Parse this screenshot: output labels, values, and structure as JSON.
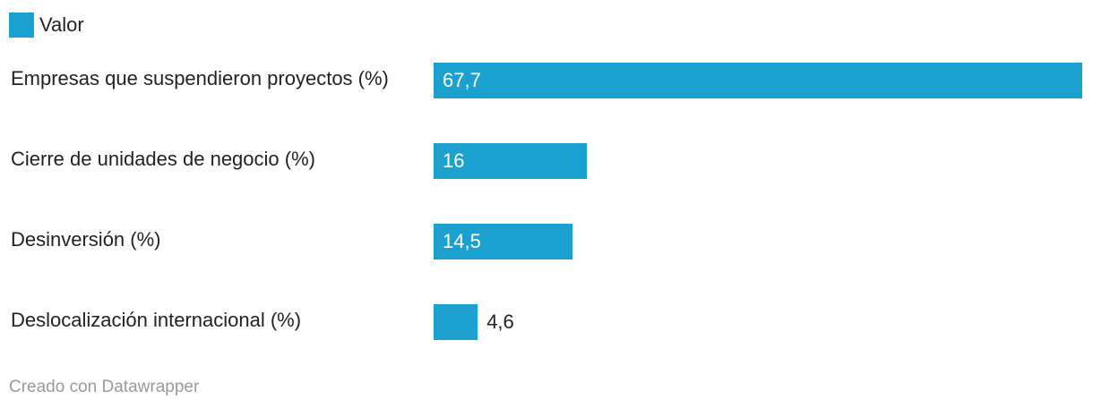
{
  "chart_data": {
    "type": "bar",
    "orientation": "horizontal",
    "legend": [
      "Valor"
    ],
    "categories": [
      "Empresas que suspendieron proyectos (%)",
      "Cierre de unidades de negocio (%)",
      "Desinversión (%)",
      "Deslocalización internacional (%)"
    ],
    "values": [
      67.7,
      16,
      14.5,
      4.6
    ],
    "value_labels": [
      "67,7",
      "16",
      "14,5",
      "4,6"
    ],
    "color": "#1ba1d0",
    "footer": "Creado con Datawrapper"
  }
}
